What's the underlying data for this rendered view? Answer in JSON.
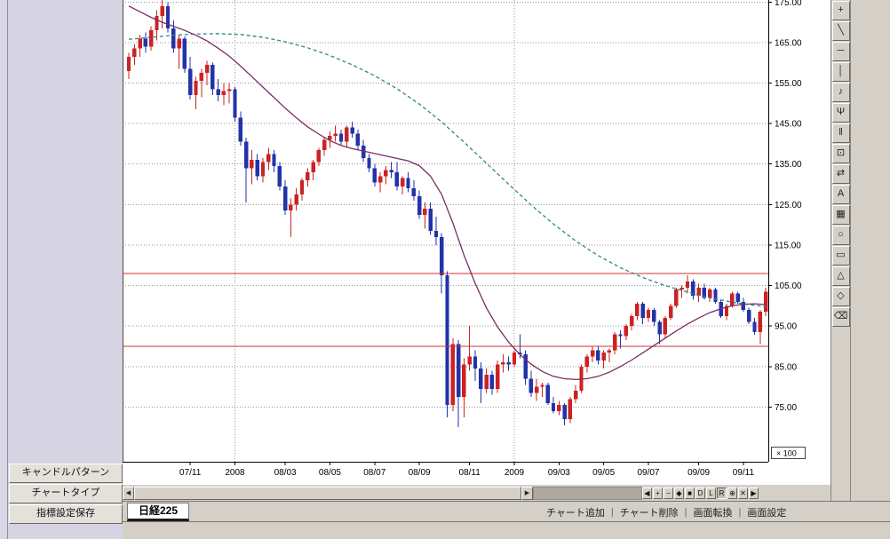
{
  "sidebar": {
    "buttons": [
      {
        "label": "キャンドルパターン"
      },
      {
        "label": "チャートタイプ"
      },
      {
        "label": "指標設定保存"
      }
    ]
  },
  "toolbar": {
    "tools": [
      {
        "name": "crosshair-tool",
        "glyph": "+"
      },
      {
        "name": "trendline-tool",
        "glyph": "╲"
      },
      {
        "name": "horizontal-line-tool",
        "glyph": "─"
      },
      {
        "name": "vertical-line-tool",
        "glyph": "│"
      },
      {
        "name": "alert-tool",
        "glyph": "♪"
      },
      {
        "name": "pitchfork-tool",
        "glyph": "Ψ"
      },
      {
        "name": "candlestick-pattern-tool",
        "glyph": "‖"
      },
      {
        "name": "callout-tool",
        "glyph": "⊡"
      },
      {
        "name": "compare-tool",
        "glyph": "⇄"
      },
      {
        "name": "text-tool",
        "glyph": "A"
      },
      {
        "name": "grid-tool",
        "glyph": "▦"
      },
      {
        "name": "ellipse-tool",
        "glyph": "○"
      },
      {
        "name": "rectangle-tool",
        "glyph": "▭"
      },
      {
        "name": "triangle-tool",
        "glyph": "△"
      },
      {
        "name": "eraser-tool",
        "glyph": "◇"
      },
      {
        "name": "clear-all-tool",
        "glyph": "⌫"
      }
    ]
  },
  "scrollbar": {
    "left_arrow": "◀",
    "right_arrow": "▶"
  },
  "controls": {
    "buttons": [
      {
        "name": "page-start-button",
        "label": "◀"
      },
      {
        "name": "zoom-in-button",
        "label": "+"
      },
      {
        "name": "zoom-out-button",
        "label": "−"
      },
      {
        "name": "candle-style-button",
        "label": "◆"
      },
      {
        "name": "bar-style-button",
        "label": "■"
      },
      {
        "name": "button-d",
        "label": "D"
      },
      {
        "name": "button-l",
        "label": "L"
      },
      {
        "name": "button-r",
        "label": "R",
        "pressed": true
      },
      {
        "name": "zoom-mode-button",
        "label": "⊕"
      },
      {
        "name": "close-chart-button",
        "label": "✕"
      },
      {
        "name": "page-end-button",
        "label": "▶"
      }
    ]
  },
  "tabbar": {
    "active_tab": "日経225",
    "separator": "|",
    "actions": [
      {
        "name": "add-chart-action",
        "label": "チャート追加"
      },
      {
        "name": "delete-chart-action",
        "label": "チャート削除"
      },
      {
        "name": "switch-screen-action",
        "label": "画面転換"
      },
      {
        "name": "screen-settings-action",
        "label": "画面設定"
      }
    ]
  },
  "chart_data": {
    "type": "candlestick",
    "unit_label": "× 100",
    "ylim": [
      61.5,
      175.5
    ],
    "y_axis": {
      "tick_values": [
        175,
        165,
        155,
        145,
        135,
        125,
        115,
        105,
        95,
        85,
        75
      ],
      "tick_labels": [
        "175.00",
        "165.00",
        "155.00",
        "145.00",
        "135.00",
        "125.00",
        "115.00",
        "105.00",
        "95.00",
        "85.00",
        "75.00"
      ]
    },
    "x_labels": [
      {
        "text": "07/11",
        "index": 11
      },
      {
        "text": "2008",
        "index": 19
      },
      {
        "text": "08/03",
        "index": 28
      },
      {
        "text": "08/05",
        "index": 36
      },
      {
        "text": "08/07",
        "index": 44
      },
      {
        "text": "08/09",
        "index": 52
      },
      {
        "text": "08/11",
        "index": 61
      },
      {
        "text": "2009",
        "index": 69
      },
      {
        "text": "09/03",
        "index": 77
      },
      {
        "text": "09/05",
        "index": 85
      },
      {
        "text": "09/07",
        "index": 93
      },
      {
        "text": "09/09",
        "index": 102
      },
      {
        "text": "09/11",
        "index": 110
      }
    ],
    "vertical_gridline_indices": [
      19,
      69
    ],
    "hlines": [
      {
        "value": 108.0,
        "color": "#cc3333"
      },
      {
        "value": 90.0,
        "color": "#cc3333"
      }
    ],
    "up_color": "#cc2222",
    "down_color": "#2233aa",
    "grid_color": "#9a9a9a",
    "ma_short": {
      "color": "#7b2d62",
      "points": [
        [
          0,
          174
        ],
        [
          2,
          172.6
        ],
        [
          4,
          171.2
        ],
        [
          6,
          170
        ],
        [
          8,
          169
        ],
        [
          10,
          168
        ],
        [
          12,
          166.8
        ],
        [
          14,
          165.4
        ],
        [
          16,
          163.6
        ],
        [
          18,
          161.6
        ],
        [
          20,
          159.2
        ],
        [
          22,
          156.6
        ],
        [
          24,
          154
        ],
        [
          26,
          151.4
        ],
        [
          28,
          148.8
        ],
        [
          30,
          146.4
        ],
        [
          32,
          144.2
        ],
        [
          34,
          142.4
        ],
        [
          36,
          140.8
        ],
        [
          38,
          139.6
        ],
        [
          40,
          138.8
        ],
        [
          42,
          138.2
        ],
        [
          44,
          137.6
        ],
        [
          46,
          137
        ],
        [
          48,
          136.4
        ],
        [
          50,
          135.8
        ],
        [
          52,
          134.6
        ],
        [
          54,
          132
        ],
        [
          56,
          127.5
        ],
        [
          58,
          120.5
        ],
        [
          60,
          112.5
        ],
        [
          62,
          105.5
        ],
        [
          64,
          99.5
        ],
        [
          66,
          94.8
        ],
        [
          68,
          91
        ],
        [
          70,
          88
        ],
        [
          72,
          85.6
        ],
        [
          74,
          83.8
        ],
        [
          76,
          82.6
        ],
        [
          78,
          82
        ],
        [
          80,
          81.8
        ],
        [
          82,
          82
        ],
        [
          84,
          82.6
        ],
        [
          86,
          83.6
        ],
        [
          88,
          85
        ],
        [
          90,
          86.6
        ],
        [
          92,
          88.4
        ],
        [
          94,
          90.2
        ],
        [
          96,
          92
        ],
        [
          98,
          93.8
        ],
        [
          100,
          95.5
        ],
        [
          102,
          97
        ],
        [
          104,
          98.3
        ],
        [
          106,
          99.3
        ],
        [
          108,
          100
        ],
        [
          110,
          100.4
        ],
        [
          112,
          100.5
        ],
        [
          114,
          100.3
        ]
      ]
    },
    "ma_long": {
      "color": "#2e8786",
      "dashed": true,
      "points": [
        [
          0,
          165.8
        ],
        [
          4,
          166.3
        ],
        [
          8,
          166.8
        ],
        [
          12,
          167.1
        ],
        [
          16,
          167.2
        ],
        [
          20,
          167
        ],
        [
          24,
          166.3
        ],
        [
          28,
          165.2
        ],
        [
          32,
          163.7
        ],
        [
          36,
          161.8
        ],
        [
          40,
          159.5
        ],
        [
          44,
          156.8
        ],
        [
          48,
          153.6
        ],
        [
          52,
          149.8
        ],
        [
          56,
          145.4
        ],
        [
          60,
          140.4
        ],
        [
          64,
          135.2
        ],
        [
          68,
          130
        ],
        [
          72,
          124.9
        ],
        [
          76,
          120.2
        ],
        [
          80,
          116
        ],
        [
          84,
          112.4
        ],
        [
          88,
          109.4
        ],
        [
          92,
          107
        ],
        [
          96,
          105
        ],
        [
          100,
          103.4
        ],
        [
          104,
          102
        ],
        [
          108,
          100.9
        ],
        [
          112,
          100.1
        ],
        [
          114,
          99.8
        ]
      ]
    },
    "candles": [
      [
        158,
        162.5,
        156,
        161.5
      ],
      [
        161.5,
        164.5,
        159.5,
        163.5
      ],
      [
        163.5,
        167,
        161.5,
        166
      ],
      [
        166,
        167.5,
        162.5,
        164
      ],
      [
        164,
        169,
        163,
        168
      ],
      [
        168,
        173,
        165.5,
        171.5
      ],
      [
        171.5,
        175.5,
        168.5,
        174
      ],
      [
        174,
        175,
        167.5,
        168.5
      ],
      [
        168.5,
        170.5,
        162.5,
        163.5
      ],
      [
        163.5,
        167,
        158.5,
        166
      ],
      [
        166,
        166.5,
        157.5,
        158.5
      ],
      [
        158.5,
        161.5,
        151,
        152
      ],
      [
        152,
        156.5,
        148.5,
        155.5
      ],
      [
        155.5,
        158.5,
        151.5,
        157.5
      ],
      [
        157.5,
        160.5,
        154.5,
        159.5
      ],
      [
        159.5,
        160,
        152,
        153.5
      ],
      [
        153.5,
        156,
        150.5,
        152
      ],
      [
        152,
        155,
        149.5,
        153
      ],
      [
        153,
        155,
        150,
        153.5
      ],
      [
        153.5,
        154,
        145.5,
        146.5
      ],
      [
        146.5,
        148,
        139.5,
        140.5
      ],
      [
        140.5,
        141.5,
        125.5,
        134
      ],
      [
        134,
        138.5,
        130,
        136
      ],
      [
        136,
        137.5,
        131,
        132
      ],
      [
        132,
        136.5,
        130.5,
        135.5
      ],
      [
        135.5,
        139,
        133.5,
        137.5
      ],
      [
        137.5,
        138.5,
        133,
        134.5
      ],
      [
        134.5,
        135.5,
        128.5,
        129.5
      ],
      [
        129.5,
        131,
        122.5,
        123.5
      ],
      [
        123.5,
        126.5,
        117,
        125
      ],
      [
        125,
        129,
        123.5,
        127.5
      ],
      [
        127.5,
        131.5,
        126,
        131
      ],
      [
        131,
        134,
        129.5,
        133
      ],
      [
        133,
        136,
        131,
        135.5
      ],
      [
        135.5,
        139,
        134.5,
        138.5
      ],
      [
        138.5,
        141.5,
        137,
        141
      ],
      [
        141,
        143,
        139,
        142
      ],
      [
        142,
        144.5,
        140.5,
        142.5
      ],
      [
        142.5,
        143.5,
        139.5,
        140.5
      ],
      [
        140.5,
        144.5,
        139,
        144
      ],
      [
        144,
        145.5,
        141.5,
        142.5
      ],
      [
        142.5,
        143.5,
        138.5,
        139.5
      ],
      [
        139.5,
        141,
        135.5,
        136.5
      ],
      [
        136.5,
        137.5,
        133,
        134
      ],
      [
        134,
        135,
        129.5,
        130.5
      ],
      [
        130.5,
        133,
        128,
        132
      ],
      [
        132,
        134.5,
        130,
        133.5
      ],
      [
        133.5,
        135.5,
        131.5,
        133
      ],
      [
        133,
        135.5,
        128.5,
        129.5
      ],
      [
        129.5,
        132,
        127.5,
        131.5
      ],
      [
        131.5,
        133,
        128,
        129
      ],
      [
        129,
        131,
        126,
        127
      ],
      [
        127,
        128.5,
        121.5,
        122.5
      ],
      [
        122.5,
        125.5,
        119,
        124
      ],
      [
        124,
        125.5,
        117.5,
        118.5
      ],
      [
        118.5,
        122,
        115,
        117
      ],
      [
        117,
        118,
        103,
        107.5
      ],
      [
        107.5,
        108.5,
        72.5,
        75.5
      ],
      [
        75.5,
        92,
        74,
        90.5
      ],
      [
        90.5,
        91.5,
        70,
        77.5
      ],
      [
        77.5,
        87,
        72.5,
        85.5
      ],
      [
        85.5,
        95,
        84,
        87.5
      ],
      [
        87.5,
        89,
        81.5,
        84.5
      ],
      [
        84.5,
        86,
        76,
        79.5
      ],
      [
        79.5,
        84.5,
        78.5,
        83
      ],
      [
        83,
        84,
        78,
        79.5
      ],
      [
        79.5,
        86.5,
        78.5,
        85.5
      ],
      [
        85.5,
        88,
        83.5,
        86
      ],
      [
        86,
        87.5,
        84,
        85.5
      ],
      [
        85.5,
        89,
        85,
        88.5
      ],
      [
        88.5,
        93,
        87,
        88
      ],
      [
        88,
        89,
        80.5,
        82
      ],
      [
        82,
        84,
        77.5,
        78.5
      ],
      [
        78.5,
        82,
        76.5,
        80
      ],
      [
        80,
        81,
        77.5,
        80.5
      ],
      [
        80.5,
        81,
        75.5,
        76
      ],
      [
        76,
        77.5,
        73.5,
        74
      ],
      [
        74,
        76.5,
        73,
        75.5
      ],
      [
        75.5,
        76,
        70.5,
        72
      ],
      [
        72,
        77.5,
        71,
        77
      ],
      [
        77,
        80.5,
        76,
        79
      ],
      [
        79,
        85.5,
        78.5,
        85
      ],
      [
        85,
        88,
        83.5,
        87.5
      ],
      [
        87.5,
        90,
        86,
        89
      ],
      [
        89,
        90,
        85.5,
        86.5
      ],
      [
        86.5,
        89,
        84.5,
        88.5
      ],
      [
        88.5,
        89.5,
        86,
        89
      ],
      [
        89,
        93.5,
        88,
        93
      ],
      [
        93,
        94,
        89.5,
        92.5
      ],
      [
        92.5,
        95.5,
        91.5,
        95
      ],
      [
        95,
        98,
        94,
        97.5
      ],
      [
        97.5,
        101,
        96.5,
        100.5
      ],
      [
        100.5,
        101,
        95.5,
        97
      ],
      [
        97,
        99.5,
        96,
        99
      ],
      [
        99,
        99.5,
        95,
        96
      ],
      [
        96,
        96.5,
        90.5,
        93
      ],
      [
        93,
        97.5,
        92,
        97
      ],
      [
        97,
        100.5,
        96.5,
        100
      ],
      [
        100,
        104.5,
        99.5,
        104
      ],
      [
        104,
        105,
        102,
        104.5
      ],
      [
        104.5,
        107.5,
        103,
        106
      ],
      [
        106,
        106.5,
        101.5,
        102.5
      ],
      [
        102.5,
        105.5,
        101,
        104.5
      ],
      [
        104.5,
        105.5,
        101.5,
        102
      ],
      [
        102,
        104.5,
        101,
        104
      ],
      [
        104,
        104.5,
        100.5,
        101
      ],
      [
        101,
        101.5,
        97,
        97.5
      ],
      [
        97.5,
        100.5,
        96.5,
        100
      ],
      [
        100,
        103.5,
        99.5,
        103
      ],
      [
        103,
        103.5,
        100.5,
        101
      ],
      [
        101,
        102,
        98.5,
        99
      ],
      [
        99,
        99.5,
        95.5,
        96
      ],
      [
        96,
        97,
        92.8,
        93.5
      ],
      [
        93.5,
        99,
        90.5,
        98.5
      ],
      [
        98.5,
        104.5,
        97.5,
        103.5
      ]
    ]
  }
}
